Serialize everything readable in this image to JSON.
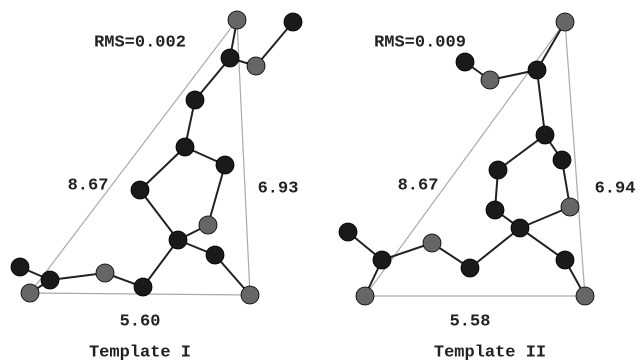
{
  "panels": [
    {
      "rms": "RMS=0.002",
      "distances": {
        "left": "8.67",
        "right": "6.93",
        "bottom": "5.60"
      },
      "title": "Template I"
    },
    {
      "rms": "RMS=0.009",
      "distances": {
        "left": "8.67",
        "right": "6.94",
        "bottom": "5.58"
      },
      "title": "Template II"
    }
  ]
}
